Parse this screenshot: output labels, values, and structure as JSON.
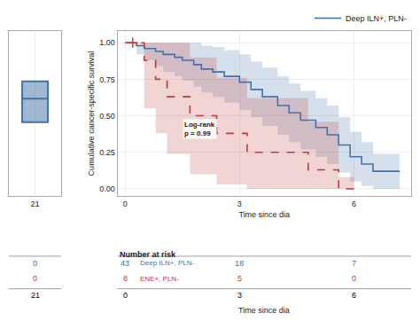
{
  "chart_data": [
    {
      "type": "box",
      "categories": [
        "21"
      ],
      "median": [
        0.62
      ],
      "q1": [
        0.47
      ],
      "q3": [
        0.73
      ],
      "color": "#4472a8",
      "ylim": [
        0,
        1.05
      ],
      "yticks": [],
      "tick_labels": "x",
      "grid": true,
      "number_at_risk": {
        "x": [
          "21"
        ],
        "rows": [
          {
            "color": "#4472a8",
            "values": [
              0
            ]
          },
          {
            "color": "#c0393b",
            "values": [
              0
            ]
          }
        ]
      }
    },
    {
      "type": "step",
      "xlabel": "Time since dia",
      "ylabel": "Cumulative cancer-specific survival",
      "xlim": [
        -0.2,
        7.5
      ],
      "ylim": [
        -0.05,
        1.08
      ],
      "xticks": [
        0,
        3,
        6
      ],
      "yticks": [
        {
          "value": 0.0,
          "label": "0.00"
        },
        {
          "value": 0.25,
          "label": "0.25"
        },
        {
          "value": 0.5,
          "label": "0.50"
        },
        {
          "value": 0.75,
          "label": "0.75"
        },
        {
          "value": 1.0,
          "label": "1.00"
        }
      ],
      "grid": true,
      "legend": "upper right",
      "series": [
        {
          "name": "Deep ILN+, PLN-",
          "color": "#4472a8",
          "line_style": "solid",
          "x": [
            0,
            0.3,
            0.5,
            0.8,
            1.0,
            1.3,
            1.5,
            1.8,
            2.0,
            2.3,
            2.6,
            3.0,
            3.3,
            3.6,
            4.0,
            4.3,
            4.6,
            5.0,
            5.3,
            5.6,
            5.9,
            6.2,
            6.5,
            7.2
          ],
          "values": [
            1.0,
            0.98,
            0.96,
            0.94,
            0.92,
            0.9,
            0.88,
            0.85,
            0.82,
            0.8,
            0.77,
            0.73,
            0.68,
            0.63,
            0.57,
            0.52,
            0.47,
            0.42,
            0.37,
            0.3,
            0.22,
            0.17,
            0.12,
            0.12
          ],
          "lower": [
            1.0,
            0.92,
            0.88,
            0.84,
            0.8,
            0.77,
            0.74,
            0.7,
            0.66,
            0.63,
            0.59,
            0.54,
            0.49,
            0.43,
            0.37,
            0.32,
            0.27,
            0.22,
            0.17,
            0.11,
            0.05,
            0.02,
            0.0,
            0.0
          ],
          "upper": [
            1.0,
            1.0,
            1.0,
            1.0,
            1.0,
            1.0,
            1.0,
            1.0,
            0.98,
            0.97,
            0.95,
            0.92,
            0.87,
            0.83,
            0.77,
            0.72,
            0.67,
            0.62,
            0.57,
            0.49,
            0.39,
            0.32,
            0.24,
            0.24
          ]
        },
        {
          "color": "#c0393b",
          "line_style": "dashed",
          "x": [
            0,
            0.2,
            0.5,
            0.8,
            1.1,
            1.4,
            1.7,
            2.1,
            2.4,
            2.8,
            3.2,
            3.6,
            4.0,
            4.4,
            4.8,
            5.2,
            5.6,
            5.85,
            6.0
          ],
          "values": [
            1.0,
            1.0,
            0.88,
            0.75,
            0.63,
            0.63,
            0.5,
            0.5,
            0.38,
            0.38,
            0.25,
            0.25,
            0.25,
            0.25,
            0.13,
            0.13,
            0.0,
            0.0,
            0.0
          ],
          "lower": [
            1.0,
            1.0,
            0.55,
            0.38,
            0.24,
            0.24,
            0.1,
            0.1,
            0.03,
            0.03,
            0.0,
            0.0,
            0.0,
            0.0,
            0.0,
            0.0,
            0.0,
            0.0,
            0.0
          ],
          "upper": [
            1.0,
            1.0,
            1.0,
            1.0,
            1.0,
            1.0,
            0.9,
            0.9,
            0.76,
            0.76,
            0.62,
            0.62,
            0.62,
            0.62,
            0.46,
            0.46,
            0.08,
            0.08,
            0.08
          ],
          "censored": {
            "x": [
              0.2
            ],
            "values": [
              1.0
            ]
          }
        }
      ],
      "annotations": [
        {
          "x": 1.5,
          "y": 0.34,
          "text": "Log-rank\np = 0.99"
        }
      ],
      "number_at_risk": {
        "title": "Number at risk",
        "x": [
          0,
          3,
          6
        ],
        "xlabel": "Time since dia",
        "rows": [
          {
            "name": "Deep ILN+, PLN-",
            "color": "#4472a8",
            "values": [
              43,
              18,
              7
            ]
          },
          {
            "name": "ENE+, PLN-",
            "color": "#c0393b",
            "values": [
              8,
              5,
              0
            ]
          }
        ]
      }
    }
  ]
}
